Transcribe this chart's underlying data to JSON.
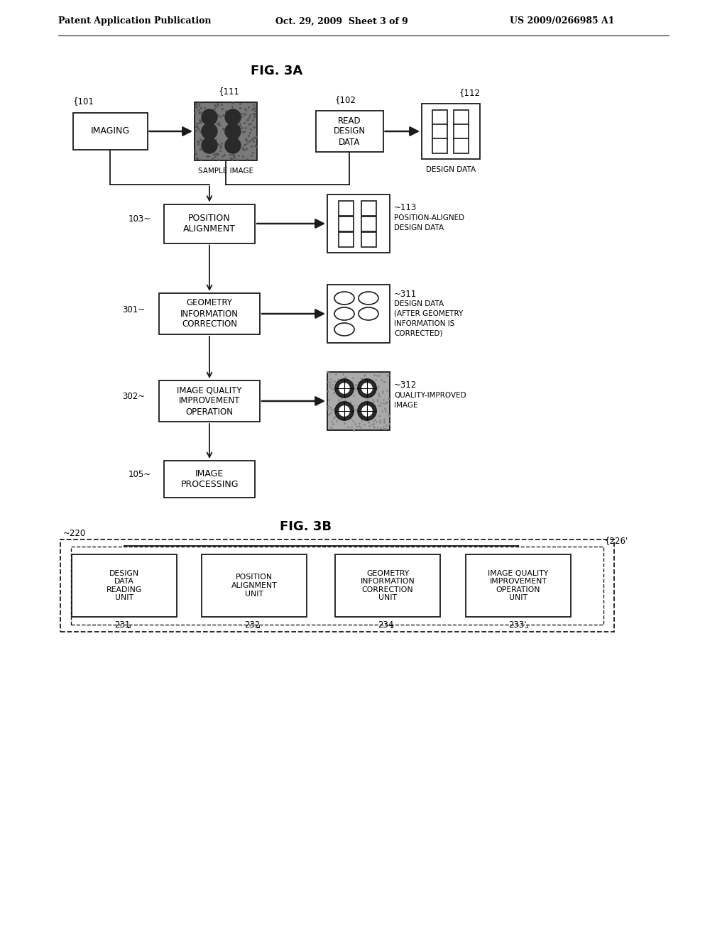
{
  "bg_color": "#ffffff",
  "header_text": "Patent Application Publication",
  "header_date": "Oct. 29, 2009  Sheet 3 of 9",
  "header_patent": "US 2009/0266985 A1",
  "fig3a_title": "FIG. 3A",
  "fig3b_title": "FIG. 3B",
  "lc": "#1a1a1a"
}
